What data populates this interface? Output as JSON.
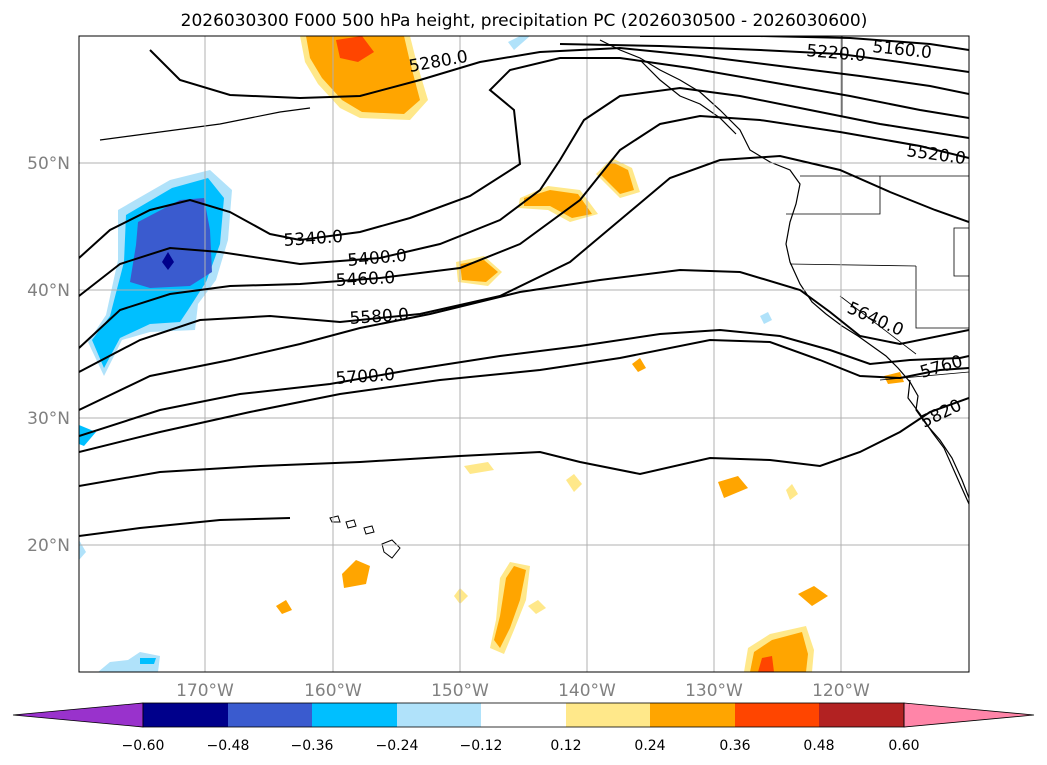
{
  "title": "2026030300 F000 500 hPa height, precipitation PC (2026030500 - 2026030600)",
  "axes": {
    "lat_ticks": [
      "50°N",
      "40°N",
      "30°N",
      "20°N"
    ],
    "lon_ticks": [
      "170°W",
      "160°W",
      "150°W",
      "140°W",
      "130°W",
      "120°W"
    ]
  },
  "contour_labels": [
    "5160.0",
    "5220.0",
    "5280.0",
    "5340.0",
    "5400.0",
    "5460.0",
    "5520.0",
    "5580.0",
    "5640.0",
    "5700.0",
    "5760",
    "5820"
  ],
  "colorbar": {
    "ticks": [
      "−0.60",
      "−0.48",
      "−0.36",
      "−0.24",
      "−0.12",
      "0.12",
      "0.24",
      "0.36",
      "0.48",
      "0.60"
    ],
    "colors": [
      "#9932cc",
      "#00008b",
      "#3a5bcf",
      "#00bfff",
      "#b0e2fa",
      "#ffffff",
      "#ffe88a",
      "#ffa500",
      "#ff4500",
      "#b22222",
      "#ff85a8"
    ]
  },
  "colors": {
    "neg_dark": "#3a5bcf",
    "neg_navy": "#00008b",
    "neg_mid": "#00bfff",
    "neg_light": "#b0e2fa",
    "pos_light": "#ffe88a",
    "pos_mid": "#ffa500",
    "pos_strong": "#ff4500",
    "pos_red": "#b22222"
  }
}
